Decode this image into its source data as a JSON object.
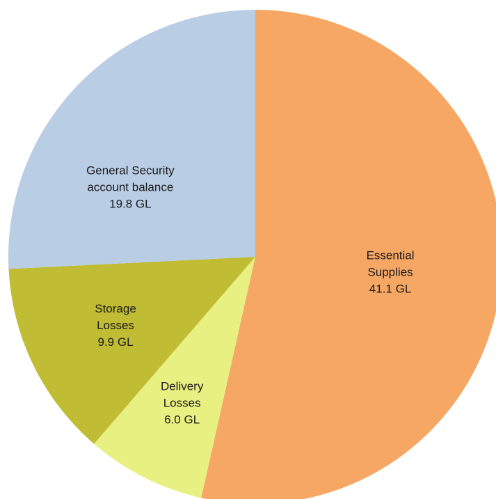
{
  "chart_data": {
    "type": "pie",
    "title": "",
    "unit": "GL",
    "slices": [
      {
        "name": "Essential Supplies",
        "label_lines": [
          "Essential",
          "Supplies",
          "41.1 GL"
        ],
        "value": 41.1,
        "color": "#F6A764"
      },
      {
        "name": "Delivery Losses",
        "label_lines": [
          "Delivery",
          "Losses",
          "6.0 GL"
        ],
        "value": 6.0,
        "color": "#E8F081"
      },
      {
        "name": "Storage Losses",
        "label_lines": [
          "Storage",
          "Losses",
          "9.9 GL"
        ],
        "value": 9.9,
        "color": "#C0BC34"
      },
      {
        "name": "General Security account balance",
        "label_lines": [
          "General Security",
          "account balance",
          "19.8 GL"
        ],
        "value": 19.8,
        "color": "#B9CDE5"
      }
    ],
    "start_angle": "12 o'clock",
    "direction": "clockwise",
    "legend": "none"
  }
}
